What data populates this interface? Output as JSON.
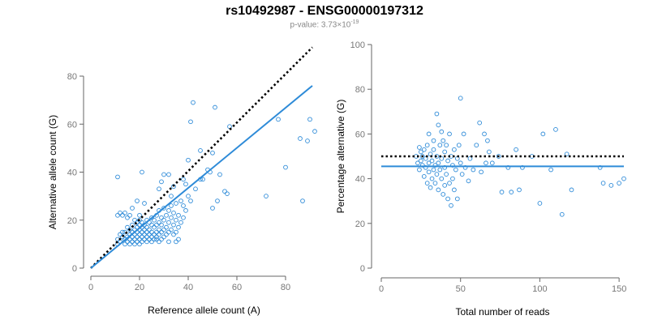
{
  "header": {
    "title": "rs10492987 - ENSG00000197312",
    "pvalue_prefix": "p-value: 3.73×10",
    "pvalue_exp": "-19"
  },
  "colors": {
    "points": "#2e8bd8",
    "fit_line": "#2e8bd8",
    "reference_line": "#000000",
    "axis": "#666666"
  },
  "chart_data": [
    {
      "type": "scatter",
      "xlabel": "Reference allele count (A)",
      "ylabel": "Alternative allele count (G)",
      "xlim": [
        0,
        93
      ],
      "ylim": [
        0,
        80
      ],
      "xticks": [
        0,
        20,
        40,
        60,
        80
      ],
      "yticks": [
        0,
        20,
        40,
        60,
        80
      ],
      "fit_line": [
        [
          0,
          0
        ],
        [
          91,
          76
        ]
      ],
      "reference_line": [
        [
          0,
          0
        ],
        [
          91,
          92
        ]
      ],
      "points": [
        [
          11,
          38
        ],
        [
          11,
          22
        ],
        [
          12,
          23
        ],
        [
          13,
          22
        ],
        [
          14,
          23
        ],
        [
          15,
          21
        ],
        [
          16,
          22
        ],
        [
          17,
          25
        ],
        [
          18,
          20
        ],
        [
          19,
          28
        ],
        [
          20,
          22
        ],
        [
          21,
          40
        ],
        [
          22,
          27
        ],
        [
          11,
          10
        ],
        [
          11,
          12
        ],
        [
          12,
          14
        ],
        [
          12,
          11
        ],
        [
          13,
          13
        ],
        [
          13,
          15
        ],
        [
          14,
          10
        ],
        [
          14,
          12
        ],
        [
          14,
          15
        ],
        [
          15,
          11
        ],
        [
          15,
          13
        ],
        [
          15,
          17
        ],
        [
          16,
          10
        ],
        [
          16,
          12
        ],
        [
          16,
          14
        ],
        [
          16,
          16
        ],
        [
          17,
          11
        ],
        [
          17,
          13
        ],
        [
          17,
          15
        ],
        [
          17,
          18
        ],
        [
          18,
          10
        ],
        [
          18,
          12
        ],
        [
          18,
          14
        ],
        [
          18,
          16
        ],
        [
          19,
          11
        ],
        [
          19,
          13
        ],
        [
          19,
          15
        ],
        [
          19,
          17
        ],
        [
          19,
          19
        ],
        [
          20,
          10
        ],
        [
          20,
          12
        ],
        [
          20,
          14
        ],
        [
          20,
          16
        ],
        [
          20,
          18
        ],
        [
          20,
          20
        ],
        [
          21,
          11
        ],
        [
          21,
          13
        ],
        [
          21,
          15
        ],
        [
          21,
          17
        ],
        [
          21,
          19
        ],
        [
          22,
          12
        ],
        [
          22,
          14
        ],
        [
          22,
          16
        ],
        [
          22,
          18
        ],
        [
          23,
          11
        ],
        [
          23,
          13
        ],
        [
          23,
          15
        ],
        [
          23,
          17
        ],
        [
          23,
          20
        ],
        [
          24,
          12
        ],
        [
          24,
          14
        ],
        [
          24,
          16
        ],
        [
          24,
          19
        ],
        [
          25,
          11
        ],
        [
          25,
          13
        ],
        [
          25,
          15
        ],
        [
          25,
          18
        ],
        [
          25,
          21
        ],
        [
          26,
          12
        ],
        [
          26,
          14
        ],
        [
          26,
          17
        ],
        [
          26,
          20
        ],
        [
          27,
          13
        ],
        [
          27,
          15
        ],
        [
          27,
          18
        ],
        [
          27,
          22
        ],
        [
          28,
          11
        ],
        [
          28,
          14
        ],
        [
          28,
          16
        ],
        [
          28,
          19
        ],
        [
          28,
          24
        ],
        [
          29,
          12
        ],
        [
          29,
          15
        ],
        [
          29,
          18
        ],
        [
          29,
          21
        ],
        [
          30,
          13
        ],
        [
          30,
          16
        ],
        [
          30,
          20
        ],
        [
          30,
          25
        ],
        [
          31,
          14
        ],
        [
          31,
          17
        ],
        [
          31,
          22
        ],
        [
          32,
          11
        ],
        [
          32,
          15
        ],
        [
          32,
          19
        ],
        [
          32,
          24
        ],
        [
          33,
          16
        ],
        [
          33,
          21
        ],
        [
          33,
          26
        ],
        [
          34,
          14
        ],
        [
          34,
          18
        ],
        [
          34,
          23
        ],
        [
          35,
          15
        ],
        [
          35,
          20
        ],
        [
          35,
          27
        ],
        [
          36,
          17
        ],
        [
          36,
          22
        ],
        [
          37,
          19
        ],
        [
          37,
          28
        ],
        [
          38,
          21
        ],
        [
          38,
          26
        ],
        [
          39,
          24
        ],
        [
          40,
          30
        ],
        [
          41,
          28
        ],
        [
          43,
          33
        ],
        [
          45,
          37
        ],
        [
          48,
          41
        ],
        [
          50,
          48
        ],
        [
          55,
          32
        ],
        [
          56,
          31
        ],
        [
          27,
          12
        ],
        [
          28,
          33
        ],
        [
          29,
          36
        ],
        [
          30,
          39
        ],
        [
          32,
          39
        ],
        [
          33,
          30
        ],
        [
          34,
          34
        ],
        [
          35,
          11
        ],
        [
          36,
          12
        ],
        [
          38,
          37
        ],
        [
          39,
          35
        ],
        [
          40,
          45
        ],
        [
          41,
          61
        ],
        [
          42,
          69
        ],
        [
          45,
          49
        ],
        [
          46,
          37
        ],
        [
          49,
          40
        ],
        [
          50,
          25
        ],
        [
          51,
          67
        ],
        [
          52,
          28
        ],
        [
          53,
          39
        ],
        [
          57,
          59
        ],
        [
          72,
          30
        ],
        [
          77,
          62
        ],
        [
          80,
          42
        ],
        [
          86,
          54
        ],
        [
          87,
          28
        ],
        [
          89,
          53
        ],
        [
          90,
          62
        ],
        [
          92,
          57
        ]
      ]
    },
    {
      "type": "scatter",
      "xlabel": "Total number of reads",
      "ylabel": "Percentage alternative (G)",
      "xlim": [
        0,
        153
      ],
      "ylim": [
        0,
        100
      ],
      "xticks": [
        0,
        50,
        100,
        150
      ],
      "yticks": [
        0,
        20,
        40,
        60,
        80,
        100
      ],
      "fit_line": [
        [
          0,
          45.5
        ],
        [
          153,
          45.5
        ]
      ],
      "reference_line": [
        [
          0,
          50
        ],
        [
          153,
          50
        ]
      ],
      "points": [
        [
          22,
          50
        ],
        [
          23,
          47
        ],
        [
          24,
          54
        ],
        [
          24,
          44
        ],
        [
          25,
          52
        ],
        [
          25,
          48
        ],
        [
          26,
          46
        ],
        [
          26,
          50
        ],
        [
          27,
          53
        ],
        [
          27,
          41
        ],
        [
          28,
          49
        ],
        [
          28,
          45
        ],
        [
          29,
          55
        ],
        [
          29,
          38
        ],
        [
          30,
          60
        ],
        [
          30,
          47
        ],
        [
          30,
          43
        ],
        [
          31,
          51
        ],
        [
          31,
          36
        ],
        [
          32,
          48
        ],
        [
          32,
          40
        ],
        [
          33,
          53
        ],
        [
          33,
          44
        ],
        [
          33,
          57
        ],
        [
          34,
          46
        ],
        [
          34,
          38
        ],
        [
          35,
          69
        ],
        [
          35,
          50
        ],
        [
          35,
          42
        ],
        [
          36,
          64
        ],
        [
          36,
          47
        ],
        [
          36,
          35
        ],
        [
          37,
          55
        ],
        [
          37,
          44
        ],
        [
          38,
          61
        ],
        [
          38,
          49
        ],
        [
          38,
          40
        ],
        [
          39,
          57
        ],
        [
          39,
          33
        ],
        [
          40,
          52
        ],
        [
          40,
          45
        ],
        [
          40,
          37
        ],
        [
          41,
          55
        ],
        [
          41,
          42
        ],
        [
          42,
          48
        ],
        [
          42,
          31
        ],
        [
          43,
          60
        ],
        [
          43,
          38
        ],
        [
          44,
          50
        ],
        [
          44,
          28
        ],
        [
          45,
          46
        ],
        [
          45,
          40
        ],
        [
          46,
          53
        ],
        [
          46,
          35
        ],
        [
          47,
          44
        ],
        [
          48,
          49
        ],
        [
          48,
          31
        ],
        [
          49,
          55
        ],
        [
          50,
          76
        ],
        [
          50,
          47
        ],
        [
          51,
          42
        ],
        [
          52,
          60
        ],
        [
          53,
          45
        ],
        [
          55,
          39
        ],
        [
          56,
          49
        ],
        [
          58,
          44
        ],
        [
          60,
          55
        ],
        [
          62,
          65
        ],
        [
          63,
          43
        ],
        [
          65,
          60
        ],
        [
          66,
          47
        ],
        [
          67,
          57
        ],
        [
          68,
          52
        ],
        [
          70,
          47
        ],
        [
          74,
          50
        ],
        [
          76,
          34
        ],
        [
          80,
          45
        ],
        [
          82,
          34
        ],
        [
          85,
          53
        ],
        [
          87,
          35
        ],
        [
          89,
          45
        ],
        [
          95,
          50
        ],
        [
          100,
          29
        ],
        [
          102,
          60
        ],
        [
          107,
          44
        ],
        [
          110,
          62
        ],
        [
          114,
          24
        ],
        [
          117,
          51
        ],
        [
          120,
          35
        ],
        [
          138,
          45
        ],
        [
          140,
          38
        ],
        [
          145,
          37
        ],
        [
          150,
          38
        ],
        [
          153,
          40
        ]
      ]
    }
  ]
}
